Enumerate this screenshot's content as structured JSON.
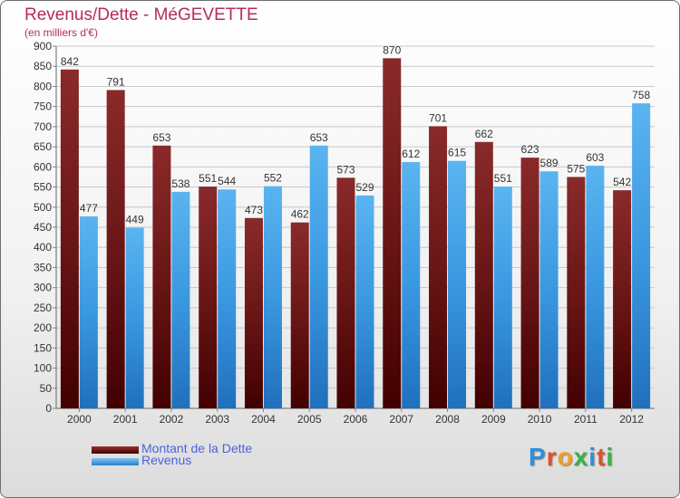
{
  "chart_data": {
    "type": "bar",
    "title": "Revenus/Dette - MéGEVETTE",
    "subtitle": "(en milliers d'€)",
    "categories": [
      "2000",
      "2001",
      "2002",
      "2003",
      "2004",
      "2005",
      "2006",
      "2007",
      "2008",
      "2009",
      "2010",
      "2011",
      "2012"
    ],
    "series": [
      {
        "name": "Montant de la Dette",
        "color": "#7a1f1f",
        "values": [
          842,
          791,
          653,
          551,
          473,
          462,
          573,
          870,
          701,
          662,
          623,
          575,
          542
        ]
      },
      {
        "name": "Revenus",
        "color": "#4aa8e8",
        "values": [
          477,
          449,
          538,
          544,
          552,
          653,
          529,
          612,
          615,
          551,
          589,
          603,
          758
        ]
      }
    ],
    "ylim": [
      0,
      900
    ],
    "yticks": [
      0,
      50,
      100,
      150,
      200,
      250,
      300,
      350,
      400,
      450,
      500,
      550,
      600,
      650,
      700,
      750,
      800,
      850,
      900
    ],
    "grid": true,
    "legend": "bottom-left"
  },
  "logo": {
    "letters": [
      "P",
      "r",
      "o",
      "x",
      "i",
      "t",
      "i"
    ],
    "colors": [
      "#2f8fd8",
      "#e0502a",
      "#f0a020",
      "#3ab04a",
      "#2f8fd8",
      "#e0502a",
      "#3ab04a"
    ]
  }
}
